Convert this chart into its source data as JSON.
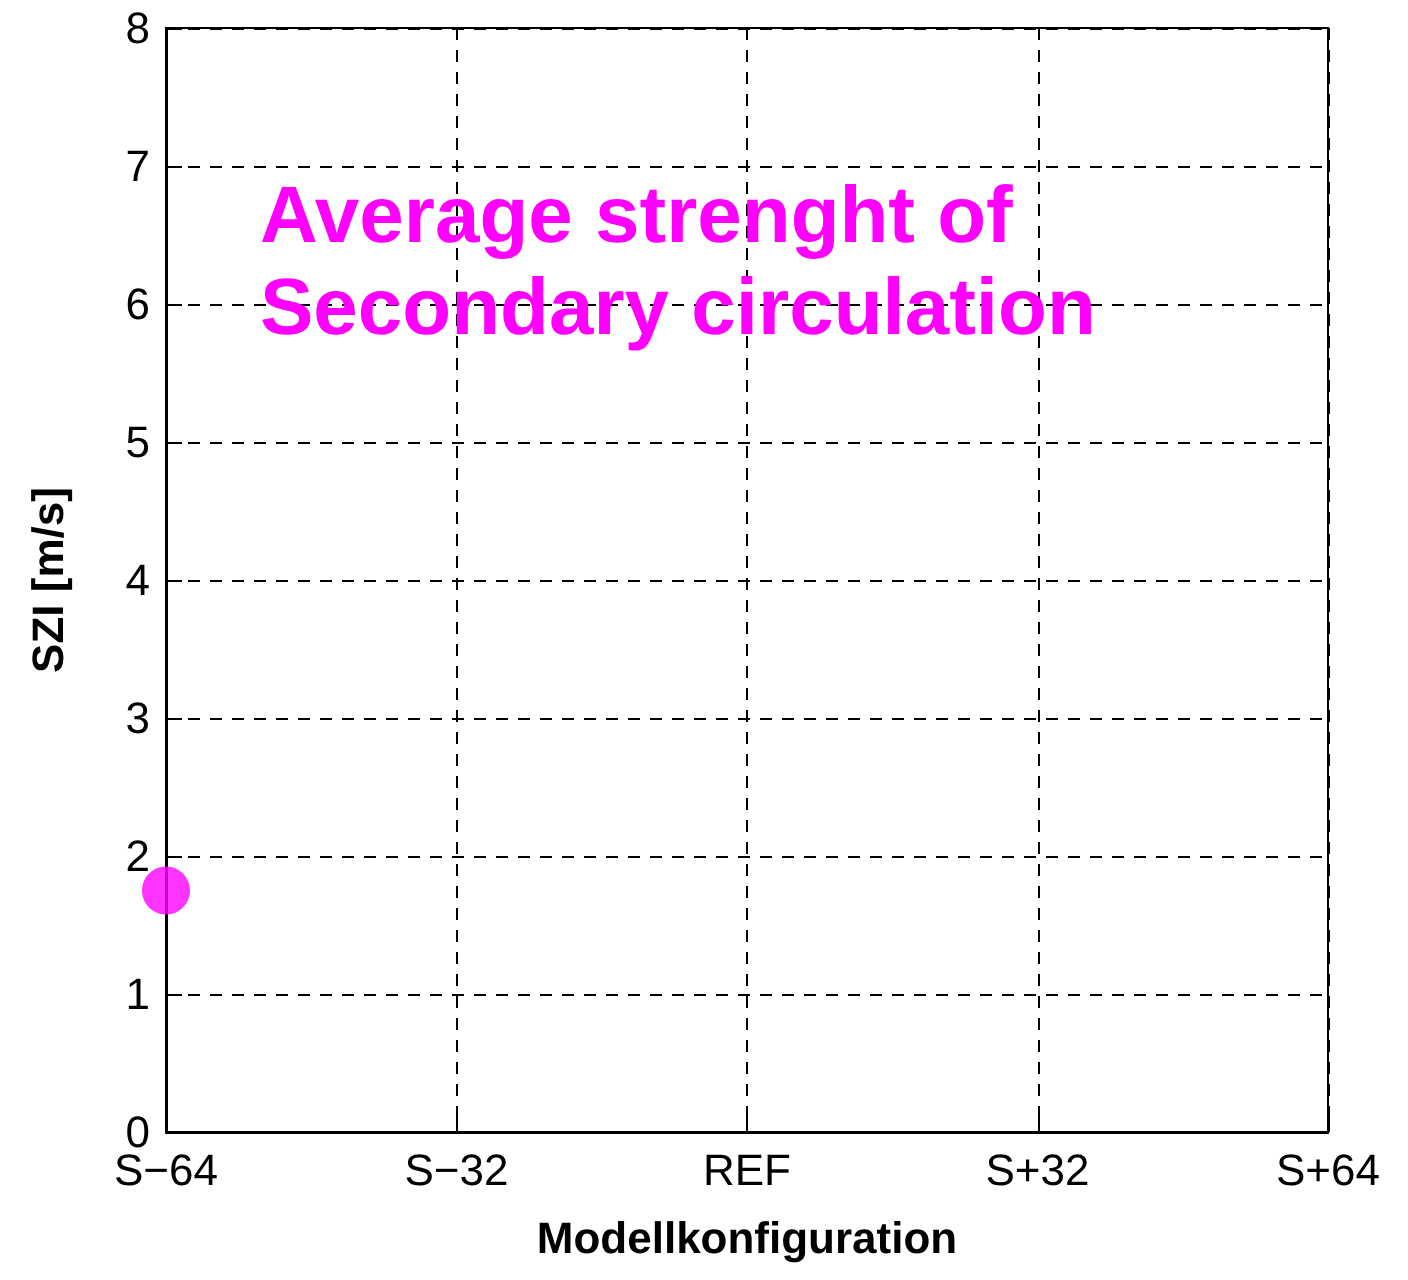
{
  "chart_data": {
    "type": "scatter",
    "xlabel": "Modellkonfiguration",
    "ylabel": "SZI [m/s]",
    "categories": [
      "S−64",
      "S−32",
      "REF",
      "S+32",
      "S+64"
    ],
    "series": [
      {
        "color": "#ff00ff",
        "values": [
          1.75,
          null,
          null,
          null,
          null
        ]
      }
    ],
    "ylim": [
      0,
      8
    ],
    "yticks": [
      0,
      1,
      2,
      3,
      4,
      5,
      6,
      7,
      8
    ],
    "grid": true,
    "marker": "circle",
    "annotations": [
      "Average strenght of Secondary circulation"
    ]
  }
}
